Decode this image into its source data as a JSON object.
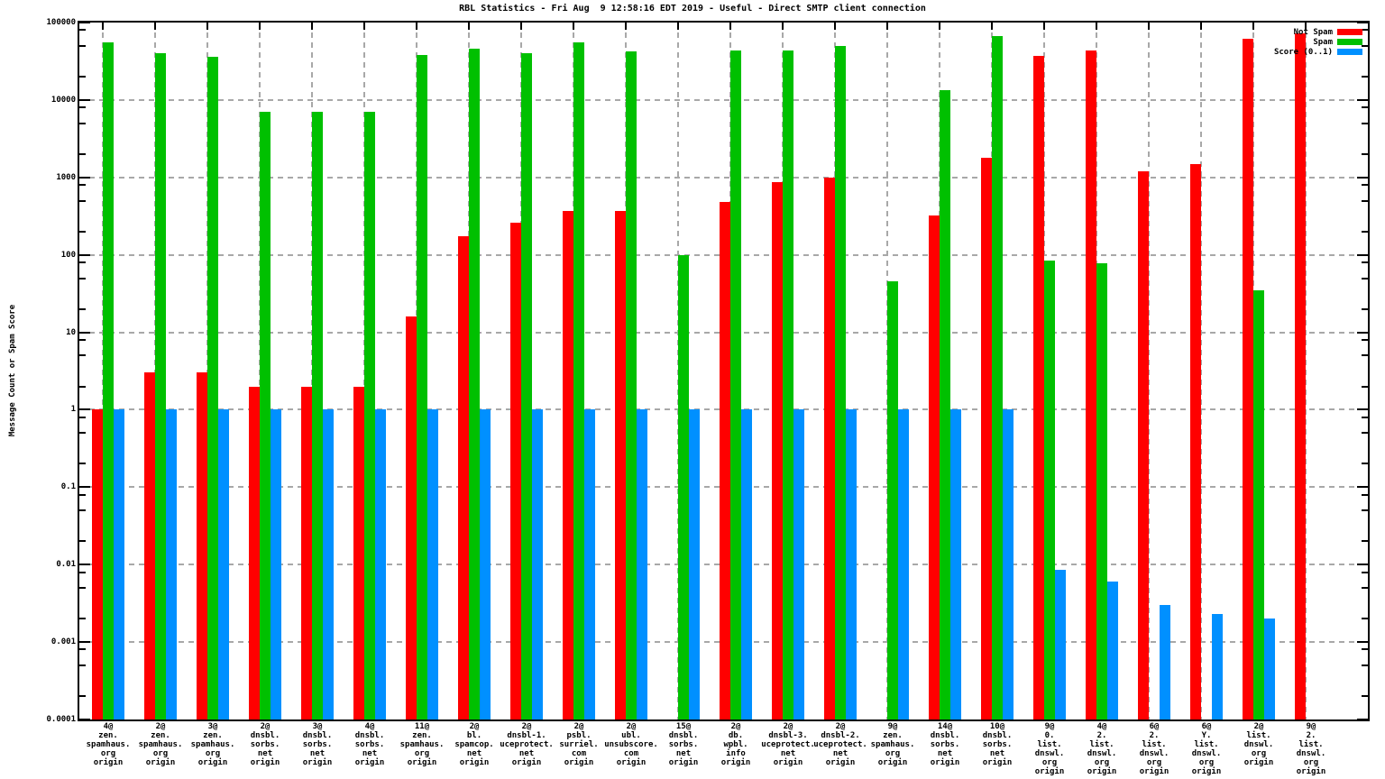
{
  "chart_data": {
    "type": "bar",
    "title": "RBL Statistics - Fri Aug  9 12:58:16 EDT 2019 - Useful - Direct SMTP client connection",
    "xlabel": "",
    "ylabel": "Message Count or Spam Score",
    "y_scale": "log",
    "ylim": [
      0.0001,
      100000
    ],
    "y_tick_labels": [
      "100000",
      "10000",
      "1000",
      "100",
      "10",
      "1",
      "0.1",
      "0.01",
      "0.001",
      "0.0001"
    ],
    "grid": true,
    "legend_position": "top-right-inside",
    "categories": [
      [
        "4@",
        "zen.",
        "spamhaus.",
        "org",
        "origin"
      ],
      [
        "2@",
        "zen.",
        "spamhaus.",
        "org",
        "origin"
      ],
      [
        "3@",
        "zen.",
        "spamhaus.",
        "org",
        "origin"
      ],
      [
        "2@",
        "dnsbl.",
        "sorbs.",
        "net",
        "origin"
      ],
      [
        "3@",
        "dnsbl.",
        "sorbs.",
        "net",
        "origin"
      ],
      [
        "4@",
        "dnsbl.",
        "sorbs.",
        "net",
        "origin"
      ],
      [
        "11@",
        "zen.",
        "spamhaus.",
        "org",
        "origin"
      ],
      [
        "2@",
        "bl.",
        "spamcop.",
        "net",
        "origin"
      ],
      [
        "2@",
        "dnsbl-1.",
        "uceprotect.",
        "net",
        "origin"
      ],
      [
        "2@",
        "psbl.",
        "surriel.",
        "com",
        "origin"
      ],
      [
        "2@",
        "ubl.",
        "unsubscore.",
        "com",
        "origin"
      ],
      [
        "15@",
        "dnsbl.",
        "sorbs.",
        "net",
        "origin"
      ],
      [
        "2@",
        "db.",
        "wpbl.",
        "info",
        "origin"
      ],
      [
        "2@",
        "dnsbl-3.",
        "uceprotect.",
        "net",
        "origin"
      ],
      [
        "2@",
        "dnsbl-2.",
        "uceprotect.",
        "net",
        "origin"
      ],
      [
        "9@",
        "zen.",
        "spamhaus.",
        "org",
        "origin"
      ],
      [
        "14@",
        "dnsbl.",
        "sorbs.",
        "net",
        "origin"
      ],
      [
        "10@",
        "dnsbl.",
        "sorbs.",
        "net",
        "origin"
      ],
      [
        "9@",
        "0.",
        "list.",
        "dnswl.",
        "org",
        "origin"
      ],
      [
        "4@",
        "2.",
        "list.",
        "dnswl.",
        "org",
        "origin"
      ],
      [
        "6@",
        "2.",
        "list.",
        "dnswl.",
        "org",
        "origin"
      ],
      [
        "6@",
        "Y.",
        "list.",
        "dnswl.",
        "org",
        "origin"
      ],
      [
        "2@",
        "list.",
        "dnswl.",
        "org",
        "origin"
      ],
      [
        "9@",
        "2.",
        "list.",
        "dnswl.",
        "org",
        "origin"
      ]
    ],
    "series": [
      {
        "name": "Not Spam",
        "color": "#ff0000",
        "values": [
          1,
          3,
          3,
          2,
          2,
          2,
          16,
          175,
          260,
          370,
          370,
          null,
          480,
          870,
          1000,
          null,
          320,
          1800,
          37000,
          44000,
          1200,
          1500,
          62000,
          72000
        ]
      },
      {
        "name": "Spam",
        "color": "#00c000",
        "values": [
          55000,
          40000,
          36000,
          7000,
          7000,
          7000,
          38000,
          46000,
          40000,
          55000,
          42000,
          100,
          44000,
          44000,
          50000,
          46,
          13500,
          66000,
          85,
          78,
          null,
          null,
          35,
          null
        ]
      },
      {
        "name": "Score (0..1)",
        "color": "#0090ff",
        "values": [
          1,
          1,
          1,
          1,
          1,
          1,
          1,
          1,
          1,
          1,
          1,
          1,
          1,
          1,
          1,
          1,
          1,
          1,
          0.0085,
          0.006,
          0.003,
          0.0023,
          0.002,
          null
        ]
      }
    ]
  }
}
